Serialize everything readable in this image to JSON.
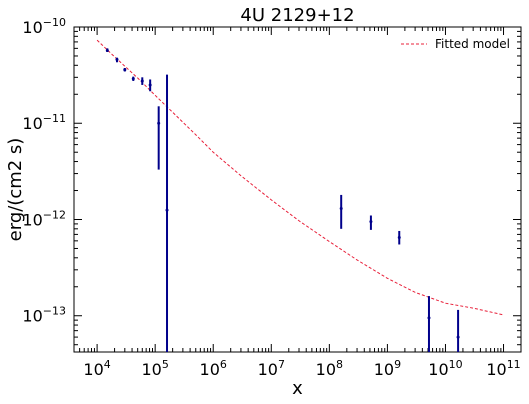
{
  "chart_data": {
    "type": "scatter",
    "title": "4U 2129+12",
    "xlabel": "x",
    "ylabel": "erg/(cm2 s)",
    "xscale": "log",
    "yscale": "log",
    "xlim": [
      4000,
      200000000000
    ],
    "ylim": [
      4.2e-14,
      1e-10
    ],
    "grid": false,
    "legend_position": "top-right",
    "colors": {
      "data": "#00008b",
      "model": "#e8203a",
      "axis": "#000000"
    },
    "x_ticks": [
      {
        "value": 10000,
        "base": "10",
        "exp": "4"
      },
      {
        "value": 100000,
        "base": "10",
        "exp": "5"
      },
      {
        "value": 1000000,
        "base": "10",
        "exp": "6"
      },
      {
        "value": 10000000,
        "base": "10",
        "exp": "7"
      },
      {
        "value": 100000000,
        "base": "10",
        "exp": "8"
      },
      {
        "value": 1000000000,
        "base": "10",
        "exp": "9"
      },
      {
        "value": 10000000000,
        "base": "10",
        "exp": "10"
      },
      {
        "value": 100000000000,
        "base": "10",
        "exp": "11"
      }
    ],
    "y_ticks": [
      {
        "value": 1e-10,
        "base": "10",
        "exp": "−10"
      },
      {
        "value": 1e-11,
        "base": "10",
        "exp": "−11"
      },
      {
        "value": 1e-12,
        "base": "10",
        "exp": "−12"
      },
      {
        "value": 1e-13,
        "base": "10",
        "exp": "−13"
      }
    ],
    "series": [
      {
        "name": "Fitted model",
        "kind": "line",
        "style": "dashed",
        "x": [
          10000,
          20000,
          50000,
          100000,
          200000,
          500000,
          1000000,
          3000000,
          10000000,
          30000000,
          100000000,
          300000000,
          1000000000,
          3000000000,
          10000000000,
          30000000000,
          100000000000
        ],
        "y": [
          7.3e-11,
          4.9e-11,
          2.95e-11,
          1.95e-11,
          1.3e-11,
          7.6e-12,
          5e-12,
          2.85e-12,
          1.6e-12,
          9.7e-13,
          5.9e-13,
          3.8e-13,
          2.45e-13,
          1.75e-13,
          1.35e-13,
          1.2e-13,
          1.02e-13
        ]
      },
      {
        "kind": "points",
        "points": [
          {
            "x": 15000,
            "y": 5.7e-11,
            "ylo": 5.5e-11,
            "yhi": 6e-11
          },
          {
            "x": 22000,
            "y": 4.6e-11,
            "ylo": 4.3e-11,
            "yhi": 4.8e-11
          },
          {
            "x": 30000,
            "y": 3.6e-11,
            "ylo": 3.45e-11,
            "yhi": 3.75e-11
          },
          {
            "x": 42000,
            "y": 2.9e-11,
            "ylo": 2.75e-11,
            "yhi": 3.05e-11
          },
          {
            "x": 60000,
            "y": 2.75e-11,
            "ylo": 2.5e-11,
            "yhi": 3e-11
          },
          {
            "x": 82000,
            "y": 2.5e-11,
            "ylo": 2.15e-11,
            "yhi": 2.85e-11
          },
          {
            "x": 115000,
            "y": 1e-11,
            "ylo": 3.3e-12,
            "yhi": 1.5e-11
          },
          {
            "x": 160000,
            "y": 1.25e-12,
            "ylo": 4.2e-14,
            "yhi": 3.2e-11
          },
          {
            "x": 160000000,
            "y": 1.3e-12,
            "ylo": 8e-13,
            "yhi": 1.8e-12
          },
          {
            "x": 520000000,
            "y": 9.5e-13,
            "ylo": 7.8e-13,
            "yhi": 1.1e-12
          },
          {
            "x": 1600000000,
            "y": 6.5e-13,
            "ylo": 5.5e-13,
            "yhi": 7.6e-13
          },
          {
            "x": 5200000000,
            "y": 9.5e-14,
            "ylo": 4.2e-14,
            "yhi": 1.6e-13
          },
          {
            "x": 16500000000,
            "y": 6e-14,
            "ylo": 4.2e-14,
            "yhi": 1.15e-13
          }
        ]
      }
    ]
  }
}
